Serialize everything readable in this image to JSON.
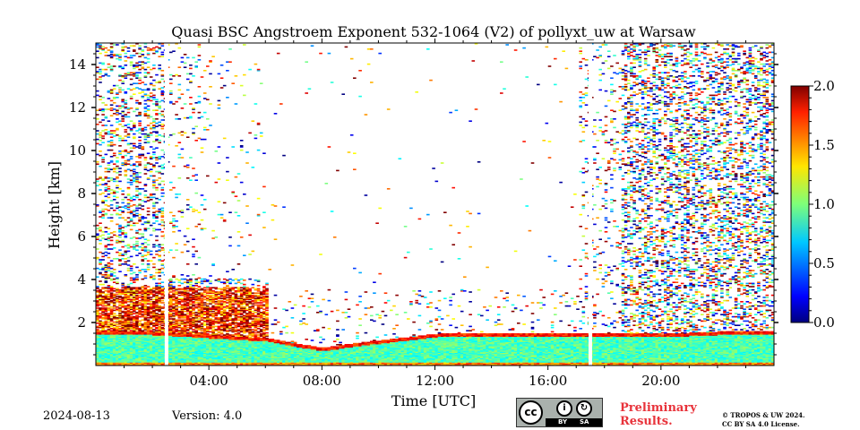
{
  "chart_data": {
    "type": "heatmap",
    "title": "Quasi BSC Angstroem Exponent 532-1064 (V2) of pollyxt_uw at Warsaw",
    "xlabel": "Time [UTC]",
    "ylabel": "Height [km]",
    "x_range_hours": [
      0,
      24
    ],
    "y_range_km": [
      0,
      15
    ],
    "x_ticks": [
      {
        "value": 4,
        "label": "04:00"
      },
      {
        "value": 8,
        "label": "08:00"
      },
      {
        "value": 12,
        "label": "12:00"
      },
      {
        "value": 16,
        "label": "16:00"
      },
      {
        "value": 20,
        "label": "20:00"
      }
    ],
    "y_ticks": [
      {
        "value": 2,
        "label": "2"
      },
      {
        "value": 4,
        "label": "4"
      },
      {
        "value": 6,
        "label": "6"
      },
      {
        "value": 8,
        "label": "8"
      },
      {
        "value": 10,
        "label": "10"
      },
      {
        "value": 12,
        "label": "12"
      },
      {
        "value": 14,
        "label": "14"
      }
    ],
    "colorbar": {
      "range": [
        0.0,
        2.0
      ],
      "ticks": [
        {
          "value": 0.0,
          "label": "0.0"
        },
        {
          "value": 0.5,
          "label": "0.5"
        },
        {
          "value": 1.0,
          "label": "1.0"
        },
        {
          "value": 1.5,
          "label": "1.5"
        },
        {
          "value": 2.0,
          "label": "2.0"
        }
      ],
      "colormap": "jet"
    },
    "data_gaps_hours": [
      2.5,
      17.5
    ],
    "boundary_layer_top_km": [
      [
        0,
        1.6
      ],
      [
        2,
        1.55
      ],
      [
        4,
        1.4
      ],
      [
        6,
        1.25
      ],
      [
        7,
        1.0
      ],
      [
        8,
        0.8
      ],
      [
        9,
        1.0
      ],
      [
        10,
        1.15
      ],
      [
        11,
        1.3
      ],
      [
        12,
        1.45
      ],
      [
        14,
        1.5
      ],
      [
        16,
        1.5
      ],
      [
        18,
        1.5
      ],
      [
        20,
        1.45
      ],
      [
        22,
        1.55
      ],
      [
        24,
        1.6
      ]
    ],
    "layer_values": {
      "boundary_layer": 0.9,
      "residual_layer_night": 1.7,
      "upper_noise": 1.0
    }
  },
  "footer": {
    "date": "2024-08-13",
    "version": "Version: 4.0",
    "preliminary_line1": "Preliminary",
    "preliminary_line2": "Results.",
    "copyright_line1": "© TROPOS & UW 2024.",
    "copyright_line2": "CC BY SA 4.0 License.",
    "license_badge": {
      "cc": "cc",
      "by": "BY",
      "sa": "SA"
    }
  }
}
